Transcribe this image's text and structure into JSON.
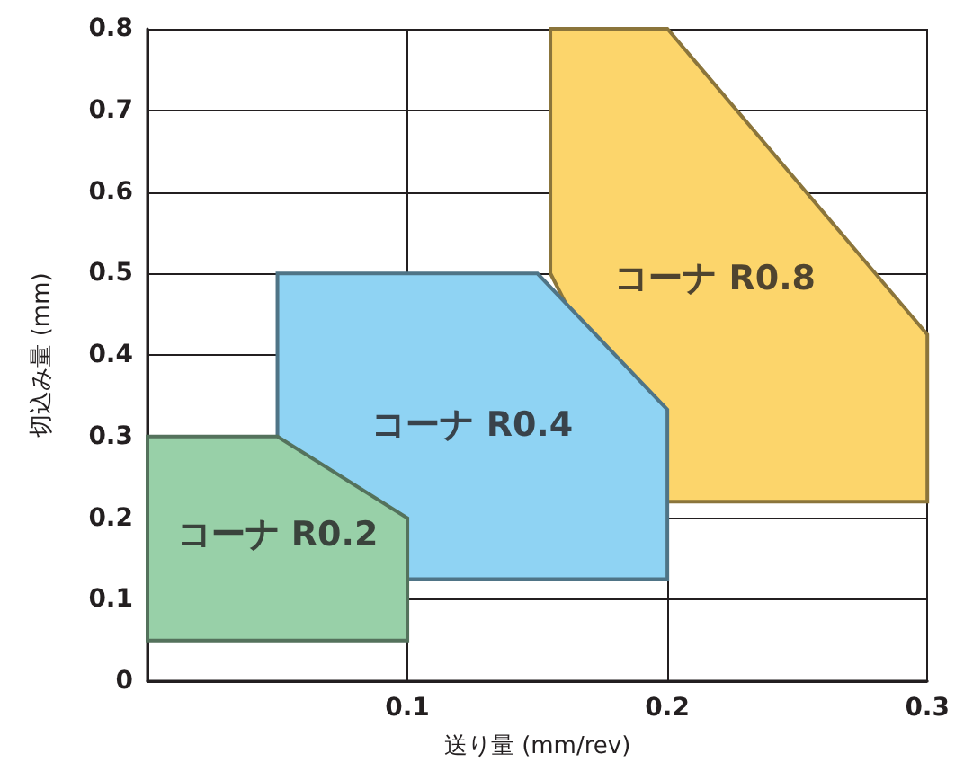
{
  "chart_data": {
    "type": "area",
    "xlabel": "送り量 (mm/rev)",
    "ylabel": "切込み量 (mm)",
    "xlim": [
      0,
      0.3
    ],
    "xticks": [
      {
        "value": 0,
        "label": null
      },
      0.1,
      0.2,
      0.3
    ],
    "ylim": [
      0,
      0.8
    ],
    "yticks": [
      0,
      0.1,
      0.2,
      0.3,
      0.4,
      0.5,
      0.6,
      0.7,
      0.8
    ],
    "grid": true,
    "series": [
      {
        "name": "コーナ R0.8",
        "color": "#fcd56b",
        "x": [
          0.155,
          0.2,
          0.3,
          0.3,
          0.2,
          0.155
        ],
        "values": [
          0.8,
          0.8,
          0.425,
          0.22,
          0.22,
          0.5
        ]
      },
      {
        "name": "コーナ R0.4",
        "color": "#8fd3f3",
        "x": [
          0.05,
          0.15,
          0.2,
          0.2,
          0.1,
          0.05
        ],
        "values": [
          0.5,
          0.5,
          0.333,
          0.125,
          0.125,
          0.3
        ]
      },
      {
        "name": "コーナ R0.2",
        "color": "#98d0a8",
        "x": [
          0,
          0.05,
          0.1,
          0.1,
          0
        ],
        "values": [
          0.3,
          0.3,
          0.2,
          0.05,
          0.05
        ]
      }
    ]
  }
}
